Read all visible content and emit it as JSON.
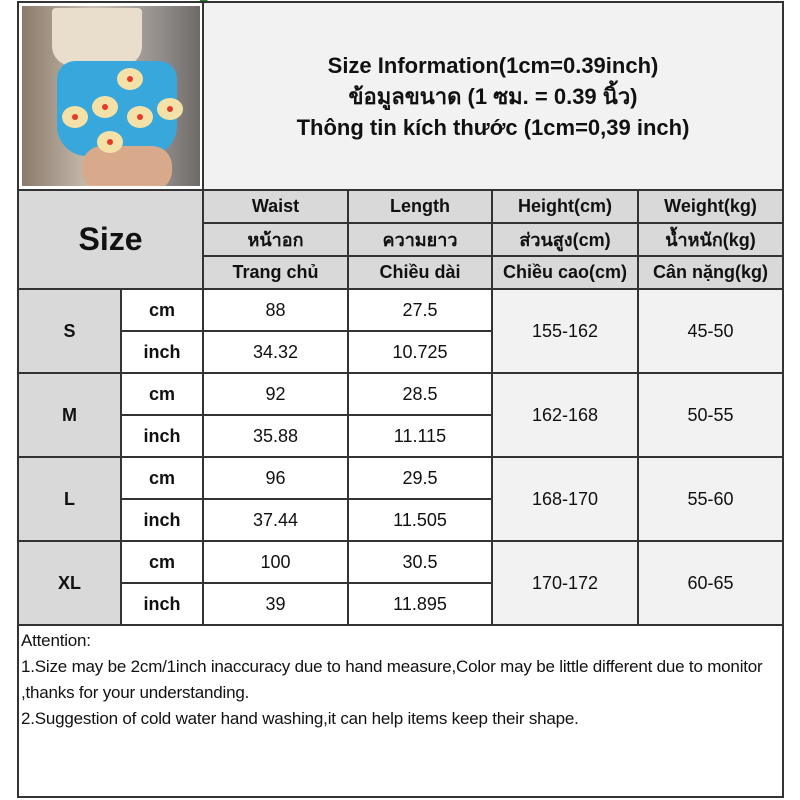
{
  "title": {
    "line1": "Size Information(1cm=0.39inch)",
    "line2": "ข้อมูลขนาด (1 ซม. = 0.39 นิ้ว)",
    "line3": "Thông tin kích thước (1cm=0,39 inch)"
  },
  "size_label": "Size",
  "headers": [
    [
      "Waist",
      "Length",
      "Height(cm)",
      "Weight(kg)"
    ],
    [
      "หน้าอก",
      "ความยาว",
      "ส่วนสูง(cm)",
      "น้ำหนัก(kg)"
    ],
    [
      "Trang chủ",
      "Chiều dài",
      "Chiều cao(cm)",
      "Cân nặng(kg)"
    ]
  ],
  "rows": [
    {
      "size": "S",
      "cm_label": "cm",
      "inch_label": "inch",
      "waist_cm": "88",
      "length_cm": "27.5",
      "waist_inch": "34.32",
      "length_inch": "10.725",
      "height": "155-162",
      "weight": "45-50"
    },
    {
      "size": "M",
      "cm_label": "cm",
      "inch_label": "inch",
      "waist_cm": "92",
      "length_cm": "28.5",
      "waist_inch": "35.88",
      "length_inch": "11.115",
      "height": "162-168",
      "weight": "50-55"
    },
    {
      "size": "L",
      "cm_label": "cm",
      "inch_label": "inch",
      "waist_cm": "96",
      "length_cm": "29.5",
      "waist_inch": "37.44",
      "length_inch": "11.505",
      "height": "168-170",
      "weight": "55-60"
    },
    {
      "size": "XL",
      "cm_label": "cm",
      "inch_label": "inch",
      "waist_cm": "100",
      "length_cm": "30.5",
      "waist_inch": "39",
      "length_inch": "11.895",
      "height": "170-172",
      "weight": "60-65"
    }
  ],
  "attention": {
    "heading": "Attention:",
    "note1": "1.Size may be 2cm/1inch inaccuracy due to hand measure,Color may be little different due to monitor ,thanks for your understanding.",
    "note2": "2.Suggestion of cold water hand washing,it can help items keep their shape."
  },
  "colors": {
    "header_gray": "#d9d9d9",
    "title_bg": "#f2f2f2",
    "border": "#333333",
    "skirt_blue": "#38a8dc"
  }
}
